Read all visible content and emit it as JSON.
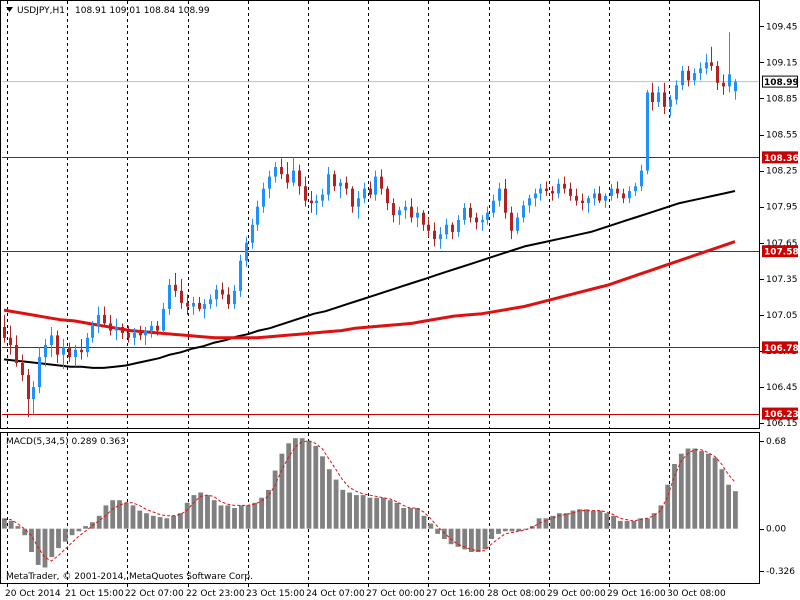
{
  "header": {
    "title": "USDJPY,H1",
    "ohlc": "108.91 109.01 108.84 108.99"
  },
  "subwindow": {
    "title": "MACD(5,34,5) 0.289 0.363"
  },
  "copyright": "MetaTrader, © 2001-2014, MetaQuotes Software Corp.",
  "colors": {
    "bull": "#1e90ff",
    "bear": "#b22222",
    "ma_fast": "#000000",
    "ma_slow": "#dd1111",
    "level": "#cc0000",
    "grid": "#000000",
    "price_line": "#c0c0c0",
    "macd_bar": "#808080",
    "macd_signal": "#dd1111"
  },
  "chart_data": [
    {
      "type": "candlestick",
      "symbol": "USDJPY",
      "timeframe": "H1",
      "x_labels": [
        "20 Oct 2014",
        "21 Oct 15:00",
        "22 Oct 07:00",
        "22 Oct 23:00",
        "23 Oct 15:00",
        "24 Oct 07:00",
        "27 Oct 00:00",
        "27 Oct 16:00",
        "28 Oct 08:00",
        "29 Oct 00:00",
        "29 Oct 16:00",
        "30 Oct 08:00"
      ],
      "y_ticks": [
        "109.45",
        "109.15",
        "108.85",
        "108.55",
        "108.25",
        "107.95",
        "107.65",
        "107.35",
        "107.05",
        "106.75",
        "106.45",
        "106.15"
      ],
      "ylim": [
        106.11,
        109.66
      ],
      "current_price": 108.99,
      "horizontal_levels": [
        108.36,
        107.58,
        106.78,
        106.23
      ],
      "level_labels": [
        "108.36",
        "107.58",
        "106.78",
        "106.23"
      ],
      "price_label": "108.99",
      "candles": [
        [
          106.95,
          107.05,
          106.82,
          106.86
        ],
        [
          106.86,
          106.96,
          106.72,
          106.8
        ],
        [
          106.8,
          106.88,
          106.62,
          106.65
        ],
        [
          106.65,
          106.72,
          106.5,
          106.55
        ],
        [
          106.55,
          106.6,
          106.2,
          106.35
        ],
        [
          106.35,
          106.5,
          106.22,
          106.45
        ],
        [
          106.45,
          106.78,
          106.4,
          106.7
        ],
        [
          106.7,
          106.85,
          106.62,
          106.8
        ],
        [
          106.8,
          106.95,
          106.7,
          106.88
        ],
        [
          106.88,
          106.92,
          106.65,
          106.72
        ],
        [
          106.72,
          106.85,
          106.6,
          106.78
        ],
        [
          106.78,
          106.82,
          106.66,
          106.7
        ],
        [
          106.7,
          106.8,
          106.62,
          106.76
        ],
        [
          106.76,
          106.85,
          106.68,
          106.74
        ],
        [
          106.74,
          106.9,
          106.7,
          106.86
        ],
        [
          106.86,
          107.0,
          106.82,
          106.96
        ],
        [
          106.96,
          107.12,
          106.9,
          107.05
        ],
        [
          107.05,
          107.12,
          106.95,
          106.98
        ],
        [
          106.98,
          107.05,
          106.88,
          106.92
        ],
        [
          106.92,
          107.02,
          106.84,
          106.95
        ],
        [
          106.95,
          106.98,
          106.85,
          106.9
        ],
        [
          106.9,
          106.96,
          106.82,
          106.86
        ],
        [
          106.86,
          106.94,
          106.8,
          106.9
        ],
        [
          106.9,
          106.96,
          106.84,
          106.88
        ],
        [
          106.88,
          106.95,
          106.8,
          106.92
        ],
        [
          106.92,
          107.0,
          106.86,
          106.96
        ],
        [
          106.96,
          107.0,
          106.88,
          106.92
        ],
        [
          106.92,
          107.15,
          106.9,
          107.1
        ],
        [
          107.1,
          107.35,
          107.05,
          107.3
        ],
        [
          107.3,
          107.4,
          107.2,
          107.25
        ],
        [
          107.25,
          107.35,
          107.1,
          107.15
        ],
        [
          107.15,
          107.22,
          107.05,
          107.12
        ],
        [
          107.12,
          107.2,
          107.05,
          107.15
        ],
        [
          107.15,
          107.2,
          107.08,
          107.1
        ],
        [
          107.1,
          107.18,
          107.02,
          107.14
        ],
        [
          107.14,
          107.22,
          107.1,
          107.18
        ],
        [
          107.18,
          107.3,
          107.12,
          107.26
        ],
        [
          107.26,
          107.32,
          107.18,
          107.22
        ],
        [
          107.22,
          107.28,
          107.1,
          107.14
        ],
        [
          107.14,
          107.3,
          107.1,
          107.25
        ],
        [
          107.25,
          107.55,
          107.2,
          107.5
        ],
        [
          107.5,
          107.7,
          107.45,
          107.65
        ],
        [
          107.65,
          107.85,
          107.6,
          107.8
        ],
        [
          107.8,
          108.0,
          107.75,
          107.95
        ],
        [
          107.95,
          108.15,
          107.9,
          108.1
        ],
        [
          108.1,
          108.25,
          108.02,
          108.2
        ],
        [
          108.2,
          108.32,
          108.15,
          108.28
        ],
        [
          108.28,
          108.35,
          108.18,
          108.22
        ],
        [
          108.22,
          108.32,
          108.1,
          108.15
        ],
        [
          108.15,
          108.36,
          108.12,
          108.25
        ],
        [
          108.25,
          108.3,
          108.05,
          108.12
        ],
        [
          108.12,
          108.2,
          107.95,
          108.0
        ],
        [
          108.0,
          108.08,
          107.9,
          107.98
        ],
        [
          107.98,
          108.05,
          107.88,
          108.0
        ],
        [
          108.0,
          108.1,
          107.95,
          108.05
        ],
        [
          108.05,
          108.28,
          108.0,
          108.22
        ],
        [
          108.22,
          108.25,
          108.08,
          108.12
        ],
        [
          108.12,
          108.18,
          108.02,
          108.15
        ],
        [
          108.15,
          108.2,
          108.05,
          108.1
        ],
        [
          108.1,
          108.12,
          107.9,
          107.95
        ],
        [
          107.95,
          108.08,
          107.85,
          108.02
        ],
        [
          108.02,
          108.15,
          107.98,
          108.1
        ],
        [
          108.1,
          108.16,
          108.02,
          108.05
        ],
        [
          108.05,
          108.25,
          108.0,
          108.2
        ],
        [
          108.2,
          108.26,
          108.05,
          108.1
        ],
        [
          108.1,
          108.12,
          107.92,
          107.98
        ],
        [
          107.98,
          108.02,
          107.82,
          107.88
        ],
        [
          107.88,
          107.95,
          107.8,
          107.92
        ],
        [
          107.92,
          108.0,
          107.85,
          107.95
        ],
        [
          107.95,
          108.02,
          107.82,
          107.86
        ],
        [
          107.86,
          107.95,
          107.78,
          107.9
        ],
        [
          107.9,
          107.92,
          107.75,
          107.8
        ],
        [
          107.8,
          107.86,
          107.7,
          107.75
        ],
        [
          107.75,
          107.82,
          107.62,
          107.68
        ],
        [
          107.68,
          107.78,
          107.6,
          107.72
        ],
        [
          107.72,
          107.85,
          107.68,
          107.8
        ],
        [
          107.8,
          107.82,
          107.68,
          107.74
        ],
        [
          107.74,
          107.88,
          107.7,
          107.84
        ],
        [
          107.84,
          107.98,
          107.8,
          107.94
        ],
        [
          107.94,
          107.98,
          107.82,
          107.86
        ],
        [
          107.86,
          107.9,
          107.76,
          107.82
        ],
        [
          107.82,
          107.88,
          107.75,
          107.84
        ],
        [
          107.84,
          107.95,
          107.8,
          107.9
        ],
        [
          107.9,
          108.05,
          107.86,
          108.0
        ],
        [
          108.0,
          108.15,
          107.95,
          108.1
        ],
        [
          108.1,
          108.18,
          107.85,
          107.9
        ],
        [
          107.9,
          107.95,
          107.68,
          107.75
        ],
        [
          107.75,
          107.9,
          107.72,
          107.86
        ],
        [
          107.86,
          108.0,
          107.82,
          107.96
        ],
        [
          107.96,
          108.05,
          107.9,
          108.02
        ],
        [
          108.02,
          108.1,
          107.95,
          108.06
        ],
        [
          108.06,
          108.14,
          108.0,
          108.1
        ],
        [
          108.1,
          108.16,
          108.04,
          108.08
        ],
        [
          108.08,
          108.12,
          108.0,
          108.06
        ],
        [
          108.06,
          108.18,
          108.02,
          108.14
        ],
        [
          108.14,
          108.2,
          108.06,
          108.1
        ],
        [
          108.1,
          108.15,
          108.0,
          108.04
        ],
        [
          108.04,
          108.1,
          107.96,
          108.0
        ],
        [
          108.0,
          108.06,
          107.92,
          107.98
        ],
        [
          107.98,
          108.04,
          107.9,
          108.02
        ],
        [
          108.02,
          108.1,
          107.96,
          108.06
        ],
        [
          108.06,
          108.12,
          107.98,
          108.0
        ],
        [
          108.0,
          108.06,
          107.94,
          108.04
        ],
        [
          108.04,
          108.14,
          108.0,
          108.1
        ],
        [
          108.1,
          108.16,
          108.02,
          108.06
        ],
        [
          108.06,
          108.1,
          107.98,
          108.02
        ],
        [
          108.02,
          108.12,
          107.98,
          108.08
        ],
        [
          108.08,
          108.15,
          108.04,
          108.12
        ],
        [
          108.12,
          108.3,
          108.08,
          108.25
        ],
        [
          108.25,
          108.92,
          108.22,
          108.9
        ],
        [
          108.9,
          108.98,
          108.75,
          108.82
        ],
        [
          108.82,
          108.95,
          108.78,
          108.9
        ],
        [
          108.9,
          108.98,
          108.72,
          108.78
        ],
        [
          108.78,
          108.88,
          108.7,
          108.84
        ],
        [
          108.84,
          109.0,
          108.8,
          108.96
        ],
        [
          108.96,
          109.12,
          108.92,
          109.08
        ],
        [
          109.08,
          109.12,
          108.95,
          109.0
        ],
        [
          109.0,
          109.1,
          108.96,
          109.06
        ],
        [
          109.06,
          109.15,
          109.0,
          109.1
        ],
        [
          109.1,
          109.22,
          109.05,
          109.15
        ],
        [
          109.15,
          109.28,
          109.08,
          109.12
        ],
        [
          109.12,
          109.16,
          108.92,
          108.98
        ],
        [
          108.98,
          109.05,
          108.88,
          108.95
        ],
        [
          108.95,
          109.4,
          108.9,
          109.05
        ],
        [
          108.91,
          109.01,
          108.84,
          108.99
        ]
      ],
      "series": [
        {
          "name": "",
          "values": [
            106.68,
            106.67,
            106.66,
            106.65,
            106.64,
            106.63,
            106.62,
            106.62,
            106.61,
            106.61,
            106.62,
            106.63,
            106.65,
            106.67,
            106.69,
            106.72,
            106.74,
            106.77,
            106.79,
            106.82,
            106.84,
            106.87,
            106.89,
            106.92,
            106.94,
            106.97,
            107.0,
            107.03,
            107.06,
            107.08,
            107.11,
            107.14,
            107.17,
            107.2,
            107.23,
            107.26,
            107.29,
            107.32,
            107.35,
            107.38,
            107.41,
            107.44,
            107.47,
            107.5,
            107.53,
            107.56,
            107.59,
            107.62,
            107.64,
            107.66,
            107.68,
            107.7,
            107.72,
            107.74,
            107.77,
            107.8,
            107.83,
            107.86,
            107.89,
            107.92,
            107.95,
            107.98,
            108.0,
            108.02,
            108.04,
            108.06,
            108.08
          ]
        },
        {
          "name": "",
          "values": [
            107.09,
            107.07,
            107.05,
            107.03,
            107.01,
            107.0,
            106.98,
            106.96,
            106.94,
            106.92,
            106.91,
            106.9,
            106.89,
            106.88,
            106.87,
            106.86,
            106.86,
            106.86,
            106.86,
            106.87,
            106.88,
            106.89,
            106.9,
            106.91,
            106.92,
            106.94,
            106.95,
            106.96,
            106.97,
            106.98,
            107.0,
            107.02,
            107.04,
            107.05,
            107.06,
            107.08,
            107.1,
            107.12,
            107.15,
            107.18,
            107.21,
            107.24,
            107.27,
            107.3,
            107.34,
            107.38,
            107.42,
            107.46,
            107.5,
            107.54,
            107.58,
            107.62,
            107.66
          ]
        }
      ]
    },
    {
      "type": "bar",
      "name": "MACD(5,34,5)",
      "y_ticks": [
        "0.68",
        "0.00",
        "-0.326"
      ],
      "ylim": [
        -0.42,
        0.74
      ],
      "series": [
        {
          "name": "",
          "values": [
            0.08,
            0.06,
            0.02,
            -0.05,
            -0.18,
            -0.28,
            -0.3,
            -0.22,
            -0.15,
            -0.1,
            -0.05,
            -0.02,
            0.02,
            0.05,
            0.1,
            0.18,
            0.22,
            0.22,
            0.2,
            0.18,
            0.14,
            0.12,
            0.1,
            0.09,
            0.08,
            0.1,
            0.12,
            0.2,
            0.26,
            0.28,
            0.26,
            0.22,
            0.18,
            0.18,
            0.16,
            0.18,
            0.18,
            0.2,
            0.24,
            0.3,
            0.45,
            0.58,
            0.66,
            0.7,
            0.7,
            0.68,
            0.64,
            0.56,
            0.46,
            0.38,
            0.3,
            0.28,
            0.26,
            0.26,
            0.24,
            0.24,
            0.24,
            0.22,
            0.2,
            0.16,
            0.16,
            0.16,
            0.1,
            0.04,
            -0.04,
            -0.08,
            -0.12,
            -0.14,
            -0.16,
            -0.18,
            -0.18,
            -0.16,
            -0.08,
            -0.04,
            -0.02,
            -0.02,
            -0.02,
            0.0,
            0.02,
            0.08,
            0.08,
            0.1,
            0.12,
            0.12,
            0.14,
            0.15,
            0.15,
            0.14,
            0.14,
            0.12,
            0.1,
            0.06,
            0.06,
            0.06,
            0.08,
            0.08,
            0.12,
            0.18,
            0.34,
            0.5,
            0.58,
            0.62,
            0.62,
            0.6,
            0.58,
            0.55,
            0.46,
            0.34,
            0.29
          ]
        },
        {
          "name": "",
          "values": [
            0.07,
            0.07,
            0.04,
            0.0,
            -0.05,
            -0.14,
            -0.22,
            -0.25,
            -0.21,
            -0.16,
            -0.11,
            -0.06,
            -0.02,
            0.02,
            0.06,
            0.1,
            0.15,
            0.18,
            0.2,
            0.2,
            0.18,
            0.15,
            0.13,
            0.11,
            0.1,
            0.1,
            0.11,
            0.14,
            0.2,
            0.25,
            0.26,
            0.25,
            0.21,
            0.19,
            0.18,
            0.18,
            0.18,
            0.19,
            0.21,
            0.25,
            0.33,
            0.45,
            0.55,
            0.63,
            0.67,
            0.68,
            0.66,
            0.62,
            0.54,
            0.46,
            0.38,
            0.32,
            0.29,
            0.27,
            0.26,
            0.25,
            0.24,
            0.23,
            0.21,
            0.18,
            0.16,
            0.16,
            0.13,
            0.08,
            0.02,
            -0.03,
            -0.08,
            -0.12,
            -0.14,
            -0.16,
            -0.17,
            -0.17,
            -0.12,
            -0.08,
            -0.04,
            -0.03,
            -0.02,
            -0.01,
            0.01,
            0.04,
            0.06,
            0.08,
            0.1,
            0.11,
            0.12,
            0.14,
            0.14,
            0.14,
            0.14,
            0.13,
            0.11,
            0.08,
            0.07,
            0.06,
            0.07,
            0.08,
            0.1,
            0.14,
            0.24,
            0.4,
            0.52,
            0.58,
            0.61,
            0.61,
            0.59,
            0.56,
            0.5,
            0.42,
            0.36
          ]
        }
      ]
    }
  ]
}
